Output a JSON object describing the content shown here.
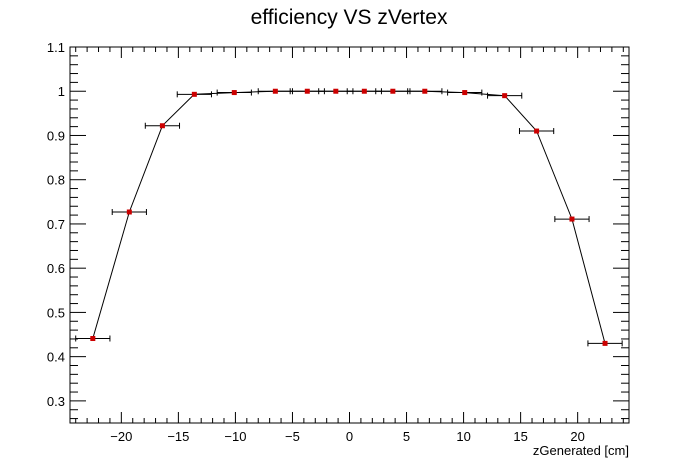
{
  "chart_data": {
    "type": "scatter",
    "title": "efficiency VS zVertex",
    "xlabel": "zGenerated [cm]",
    "ylabel": "",
    "xlim": [
      -24.5,
      24.5
    ],
    "ylim": [
      0.25,
      1.1
    ],
    "x_ticks": [
      -20,
      -15,
      -10,
      -5,
      0,
      5,
      10,
      15,
      20
    ],
    "x_tick_labels": [
      "−20",
      "−15",
      "−10",
      "−5",
      "0",
      "5",
      "10",
      "15",
      "20"
    ],
    "y_ticks": [
      0.3,
      0.4,
      0.5,
      0.6,
      0.7,
      0.8,
      0.9,
      1,
      1.1
    ],
    "y_tick_labels": [
      "0.3",
      "0.4",
      "0.5",
      "0.6",
      "0.7",
      "0.8",
      "0.9",
      "1",
      "1.1"
    ],
    "grid": false,
    "legend": "none",
    "marker_color": "#cc0000",
    "line_color": "#000000",
    "series": [
      {
        "x": [
          -22.5,
          -19.3,
          -16.4,
          -13.6,
          -10.1,
          -6.5,
          -3.7,
          -1.2,
          1.3,
          3.8,
          6.6,
          10.1,
          13.6,
          16.4,
          19.5,
          22.4
        ],
        "y": [
          0.441,
          0.727,
          0.922,
          0.993,
          0.997,
          1.0,
          1.0,
          1.0,
          1.0,
          1.0,
          1.0,
          0.997,
          0.99,
          0.91,
          0.711,
          0.43
        ],
        "x_err": [
          1.5,
          1.5,
          1.5,
          1.5,
          1.5,
          1.5,
          1.5,
          1.5,
          1.5,
          1.5,
          1.5,
          1.5,
          1.5,
          1.5,
          1.5,
          1.5
        ]
      }
    ]
  }
}
